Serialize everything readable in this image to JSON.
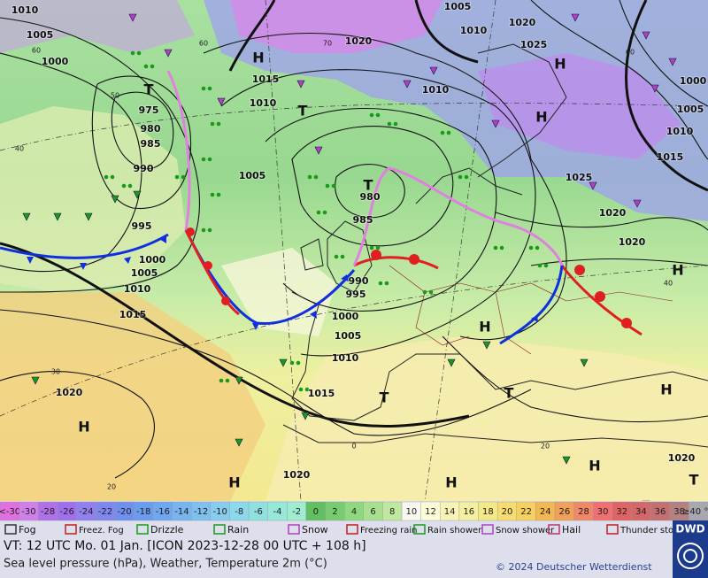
{
  "map": {
    "pressure_labels": [
      "1010",
      "1005",
      "1000",
      "975",
      "980",
      "985",
      "990",
      "995",
      "1000",
      "1005",
      "1010",
      "1015",
      "1020",
      "1005",
      "1015",
      "1010",
      "1020",
      "1005",
      "1010",
      "1020",
      "1025",
      "1010",
      "1000",
      "1005",
      "1010",
      "1015",
      "1025",
      "1020",
      "1020",
      "980",
      "985",
      "990",
      "995",
      "1000",
      "1005",
      "1010",
      "1015",
      "1020",
      "1020"
    ],
    "centers": [
      "H",
      "H",
      "T",
      "T",
      "H",
      "T",
      "H",
      "H",
      "T",
      "T",
      "H",
      "H",
      "H",
      "H",
      "H",
      "T"
    ],
    "temperature_labels": [
      "60",
      "50",
      "40",
      "30",
      "20",
      "60",
      "40",
      "0",
      "20",
      "60",
      "70"
    ]
  },
  "legend": {
    "temperature_scale": [
      "<-30",
      "-30",
      "-28",
      "-26",
      "-24",
      "-22",
      "-20",
      "-18",
      "-16",
      "-14",
      "-12",
      "-10",
      "-8",
      "-6",
      "-4",
      "-2",
      "0",
      "2",
      "4",
      "6",
      "8",
      "10",
      "12",
      "14",
      "16",
      "18",
      "20",
      "22",
      "24",
      "26",
      "28",
      "30",
      "32",
      "34",
      "36",
      "38",
      "≥40 °C"
    ],
    "temperature_colors": [
      "#e070e0",
      "#d080e8",
      "#b070e8",
      "#a070ec",
      "#9080f0",
      "#8088f0",
      "#7090f0",
      "#6a9cf0",
      "#70a8f0",
      "#78b4f0",
      "#80c0f0",
      "#88ccf0",
      "#8cd8ec",
      "#90e0e0",
      "#98e8d8",
      "#a0ecd0",
      "#60c060",
      "#78cc70",
      "#90d880",
      "#a8e090",
      "#c0e8a0",
      "#f8f8f0",
      "#fcfcd8",
      "#f8f4b8",
      "#f4f0a0",
      "#f4e888",
      "#f8dc70",
      "#f8d060",
      "#f4b850",
      "#f0a058",
      "#f08868",
      "#f07070",
      "#e06464",
      "#d46868",
      "#c47070",
      "#b48080",
      "#a8a8b0"
    ],
    "weather_symbols": [
      "Fog",
      "Freez. Fog",
      "Drizzle",
      "Rain",
      "Snow",
      "Freezing rain",
      "Rain shower",
      "Snow shower",
      "Hail",
      "Thunder storm"
    ]
  },
  "footer": {
    "valid_time": "VT: 12 UTC Mo.  01 Jan. [ICON 2023-12-28  00 UTC + 108 h]",
    "description": "Sea level pressure (hPa), Weather, Temperature 2m (°C)",
    "copyright": "© 2024 Deutscher Wetterdienst",
    "logo": "DWD"
  }
}
